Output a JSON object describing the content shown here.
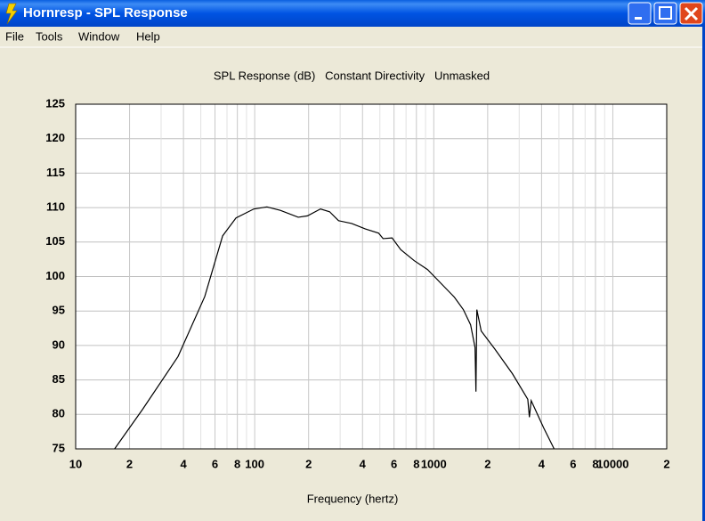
{
  "window": {
    "title": "Hornresp - SPL Response"
  },
  "menu": [
    "File",
    "Tools",
    "Window",
    "Help"
  ],
  "chart_data": {
    "type": "line",
    "title": "SPL Response (dB)   Constant Directivity   Unmasked",
    "x_label": "Frequency (hertz)",
    "x": [
      16.5,
      23.6,
      37.3,
      52.6,
      66.2,
      78.6,
      98.9,
      117,
      139,
      175,
      197,
      233,
      262,
      294,
      348,
      415,
      492,
      521,
      585,
      654,
      778,
      924,
      1098,
      1304,
      1463,
      1606,
      1700,
      1720,
      1740,
      1840,
      2190,
      2750,
      3350,
      3420,
      3500,
      4100,
      4700
    ],
    "values": [
      75,
      80.7,
      88.4,
      97.1,
      105.9,
      108.5,
      109.8,
      110.1,
      109.6,
      108.6,
      108.8,
      109.8,
      109.4,
      108.1,
      107.7,
      106.9,
      106.3,
      105.5,
      105.6,
      103.9,
      102.3,
      101,
      99,
      97,
      95.2,
      93,
      89.7,
      83.3,
      95.2,
      92.1,
      89.5,
      85.9,
      82.2,
      79.6,
      82,
      78.1,
      75
    ],
    "color": "#000000",
    "x_log": true,
    "xlim": [
      10,
      20000
    ],
    "xticks": [
      {
        "value": 10,
        "label": "10"
      },
      {
        "value": 20,
        "label": "2"
      },
      {
        "value": 40,
        "label": "4"
      },
      {
        "value": 60,
        "label": "6"
      },
      {
        "value": 80,
        "label": "8"
      },
      {
        "value": 100,
        "label": "100"
      },
      {
        "value": 200,
        "label": "2"
      },
      {
        "value": 400,
        "label": "4"
      },
      {
        "value": 600,
        "label": "6"
      },
      {
        "value": 800,
        "label": "8"
      },
      {
        "value": 1000,
        "label": "1000"
      },
      {
        "value": 2000,
        "label": "2"
      },
      {
        "value": 4000,
        "label": "4"
      },
      {
        "value": 6000,
        "label": "6"
      },
      {
        "value": 8000,
        "label": "8"
      },
      {
        "value": 10000,
        "label": "10000"
      },
      {
        "value": 20000,
        "label": "2"
      }
    ],
    "x_minor_grid": [
      30,
      50,
      70,
      90,
      300,
      500,
      700,
      900,
      3000,
      5000,
      7000,
      9000
    ],
    "ylim": [
      75,
      125
    ],
    "yticks": [
      75,
      80,
      85,
      90,
      95,
      100,
      105,
      110,
      115,
      120,
      125
    ],
    "grid": true
  }
}
